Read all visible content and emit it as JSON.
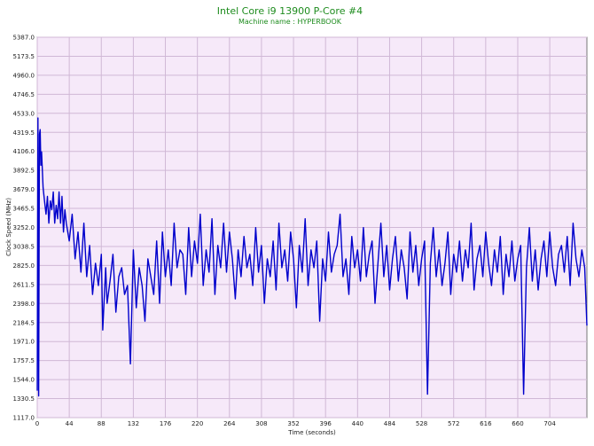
{
  "chart_data": {
    "type": "line",
    "title": "Intel Core i9 13900 P-Core #4",
    "subtitle": "Machine name : HYPERBOOK",
    "xlabel": "Time (seconds)",
    "ylabel": "Clock Speed (MHz)",
    "xlim": [
      0,
      755
    ],
    "ylim": [
      1117.0,
      5387.0
    ],
    "x_ticks": [
      "0",
      "44",
      "88",
      "132",
      "176",
      "220",
      "264",
      "308",
      "352",
      "396",
      "440",
      "484",
      "528",
      "572",
      "616",
      "660",
      "704"
    ],
    "y_ticks": [
      "5387.0",
      "5173.5",
      "4960.0",
      "4746.5",
      "4533.0",
      "4319.5",
      "4106.0",
      "3892.5",
      "3679.0",
      "3465.5",
      "3252.0",
      "3038.5",
      "2825.0",
      "2611.5",
      "2398.0",
      "2184.5",
      "1971.0",
      "1757.5",
      "1544.0",
      "1330.5",
      "1117.0"
    ],
    "grid": true,
    "colors": {
      "background": "#f6e9f9",
      "grid": "#d0b8d6",
      "line": "#0000cc",
      "title": "#1e8c1e"
    },
    "series": [
      {
        "x": [
          0,
          1,
          2,
          3,
          4,
          5,
          6,
          8,
          10,
          12,
          14,
          16,
          18,
          20,
          22,
          24,
          26,
          28,
          30,
          32,
          34,
          36,
          38,
          40,
          44,
          48,
          52,
          56,
          60,
          64,
          68,
          72,
          76,
          80,
          84,
          88,
          90,
          94,
          96,
          100,
          104,
          108,
          112,
          116,
          120,
          124,
          128,
          132,
          136,
          140,
          144,
          148,
          152,
          156,
          160,
          164,
          168,
          172,
          176,
          180,
          184,
          188,
          192,
          196,
          200,
          204,
          208,
          212,
          216,
          220,
          224,
          228,
          232,
          236,
          240,
          244,
          248,
          252,
          256,
          260,
          264,
          268,
          272,
          276,
          280,
          284,
          288,
          292,
          296,
          300,
          304,
          308,
          312,
          316,
          320,
          324,
          328,
          332,
          336,
          340,
          344,
          348,
          352,
          356,
          360,
          364,
          368,
          372,
          376,
          380,
          384,
          388,
          392,
          396,
          400,
          404,
          408,
          412,
          416,
          420,
          424,
          428,
          432,
          436,
          440,
          444,
          448,
          452,
          456,
          460,
          464,
          468,
          472,
          476,
          480,
          484,
          488,
          492,
          496,
          500,
          504,
          508,
          512,
          516,
          520,
          524,
          528,
          532,
          536,
          540,
          544,
          548,
          552,
          556,
          560,
          564,
          568,
          572,
          576,
          580,
          584,
          588,
          592,
          596,
          600,
          604,
          608,
          612,
          616,
          620,
          624,
          628,
          632,
          636,
          640,
          644,
          648,
          652,
          656,
          660,
          664,
          668,
          672,
          676,
          680,
          684,
          688,
          692,
          696,
          700,
          704,
          708,
          712,
          716,
          720,
          724,
          728,
          732,
          736,
          740,
          744,
          748,
          752,
          755
        ],
        "y": [
          1420,
          4480,
          1360,
          4300,
          4350,
          3950,
          4100,
          3700,
          3550,
          3400,
          3600,
          3300,
          3550,
          3450,
          3650,
          3300,
          3500,
          3350,
          3650,
          3300,
          3600,
          3200,
          3450,
          3300,
          3100,
          3400,
          2900,
          3200,
          2750,
          3300,
          2700,
          3050,
          2500,
          2850,
          2600,
          2950,
          2100,
          2800,
          2400,
          2650,
          2950,
          2300,
          2700,
          2800,
          2500,
          2600,
          1720,
          3000,
          2350,
          2800,
          2600,
          2200,
          2900,
          2700,
          2500,
          3100,
          2400,
          3200,
          2700,
          3000,
          2600,
          3300,
          2800,
          3000,
          2950,
          2500,
          3250,
          2700,
          3100,
          2850,
          3400,
          2600,
          3000,
          2750,
          3350,
          2500,
          3050,
          2800,
          3300,
          2750,
          3200,
          2900,
          2450,
          3000,
          2700,
          3150,
          2800,
          2950,
          2600,
          3250,
          2750,
          3050,
          2400,
          2900,
          2700,
          3100,
          2550,
          3300,
          2800,
          3000,
          2650,
          3200,
          2900,
          2350,
          3050,
          2750,
          3350,
          2600,
          3000,
          2800,
          3100,
          2200,
          2900,
          2650,
          3200,
          2750,
          2950,
          3050,
          3400,
          2700,
          2900,
          2500,
          3150,
          2800,
          3000,
          2650,
          3250,
          2700,
          2950,
          3100,
          2400,
          2850,
          3300,
          2700,
          3050,
          2550,
          2900,
          3150,
          2650,
          3000,
          2800,
          2450,
          3200,
          2750,
          3050,
          2600,
          2900,
          3100,
          1380,
          2850,
          3250,
          2700,
          3000,
          2600,
          2850,
          3200,
          2500,
          2950,
          2750,
          3100,
          2650,
          3000,
          2800,
          3300,
          2550,
          2900,
          3050,
          2700,
          3200,
          2850,
          2600,
          3000,
          2750,
          3150,
          2500,
          2950,
          2700,
          3100,
          2650,
          2900,
          3050,
          1380,
          2800,
          3250,
          2650,
          3000,
          2550,
          2900,
          3100,
          2700,
          3200,
          2800,
          2600,
          2950,
          3050,
          2750,
          3150,
          2600,
          3300,
          2900,
          2700,
          3000,
          2800,
          2150
        ]
      }
    ]
  }
}
